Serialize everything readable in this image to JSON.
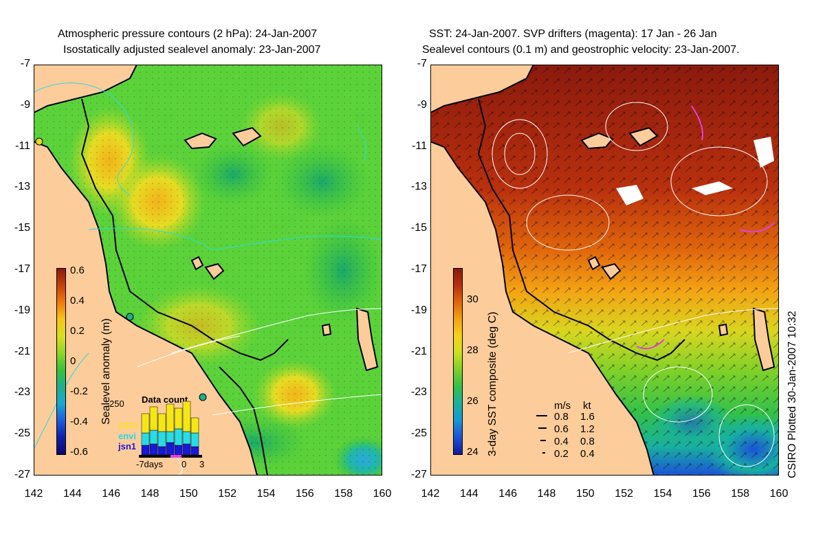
{
  "left_panel": {
    "title_line1": "Atmospheric pressure contours (2 hPa): 24-Jan-2007",
    "title_line2": "Isostatically adjusted sealevel anomaly: 23-Jan-2007",
    "colorbar": {
      "label": "Sealevel anomaly (m)",
      "ticks": [
        "0.6",
        "0.4",
        "0.2",
        "0",
        "-0.2",
        "-0.4",
        "-0.6"
      ],
      "colors": [
        "#8b1a0e",
        "#c4410c",
        "#f07c0c",
        "#f5c518",
        "#d8e020",
        "#8fd626",
        "#36c23a",
        "#1fb08c",
        "#18a8d0",
        "#1c5ce0",
        "#1020a8",
        "#0a0a6e"
      ]
    },
    "data_count": {
      "title": "Data count",
      "y_max_label": "250",
      "x_labels": [
        "-7days",
        "0",
        "3"
      ],
      "missions": [
        {
          "name": "GFO",
          "color": "#f5e616"
        },
        {
          "name": "envi",
          "color": "#28dce6"
        },
        {
          "name": "jsn1",
          "color": "#1818d8"
        }
      ]
    }
  },
  "right_panel": {
    "title_line1": "SST: 24-Jan-2007. SVP drifters (magenta): 17 Jan - 26 Jan",
    "title_line2": "Sealevel contours (0.1 m) and geostrophic velocity: 23-Jan-2007.",
    "colorbar": {
      "label": "3-day SST composite (deg C)",
      "ticks": [
        "30",
        "28",
        "26",
        "24"
      ],
      "colors": [
        "#8b1a0e",
        "#b8300e",
        "#e0660c",
        "#f3a314",
        "#f5d21a",
        "#c8e020",
        "#7cd02a",
        "#32c04a",
        "#18b0a0",
        "#1898d8",
        "#1c52d8",
        "#101c9a"
      ]
    },
    "velocity_legend": {
      "header_ms": "m/s",
      "header_kt": "kt",
      "rows": [
        {
          "ms": "0.8",
          "kt": "1.6"
        },
        {
          "ms": "0.6",
          "kt": "1.2"
        },
        {
          "ms": "0.4",
          "kt": "0.8"
        },
        {
          "ms": "0.2",
          "kt": "0.4"
        }
      ]
    }
  },
  "axes": {
    "lat_ticks": [
      "-7",
      "-9",
      "-11",
      "-13",
      "-15",
      "-17",
      "-19",
      "-21",
      "-23",
      "-25",
      "-27"
    ],
    "lon_ticks": [
      "142",
      "144",
      "146",
      "148",
      "150",
      "152",
      "154",
      "156",
      "158",
      "160"
    ]
  },
  "credit": "CSIRO Plotted 30-Jan-2007 10:32",
  "colors": {
    "land": "#fccc9a",
    "ocean_left": "#5cd23a",
    "ocean_right_warm": "#b8300e"
  }
}
